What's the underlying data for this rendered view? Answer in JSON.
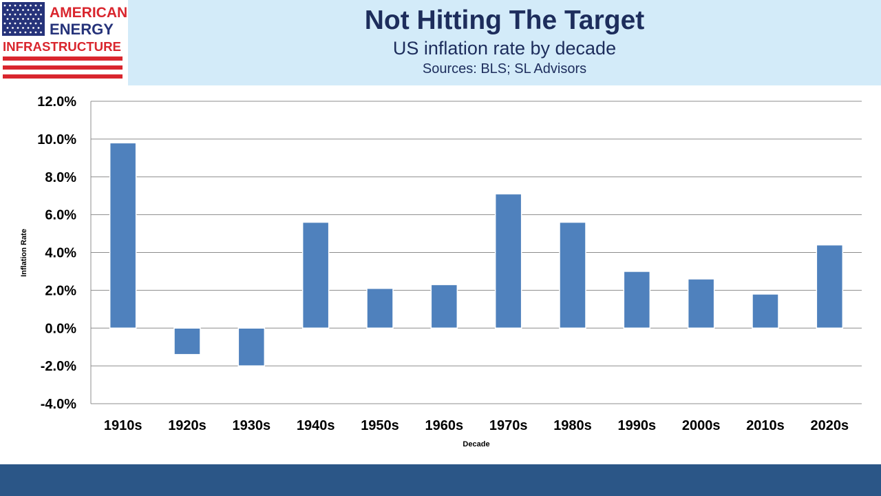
{
  "logo": {
    "line1": "AMERICAN",
    "line2": "ENERGY",
    "line3": "INFRASTRUCTURE",
    "colors": {
      "navy": "#26337a",
      "red": "#d9262e"
    }
  },
  "header": {
    "title": "Not Hitting The Target",
    "subtitle": "US inflation rate by decade",
    "source": "Sources: BLS; SL Advisors"
  },
  "chart_data": {
    "type": "bar",
    "categories": [
      "1910s",
      "1920s",
      "1930s",
      "1940s",
      "1950s",
      "1960s",
      "1970s",
      "1980s",
      "1990s",
      "2000s",
      "2010s",
      "2020s"
    ],
    "values": [
      9.8,
      -1.4,
      -2.0,
      5.6,
      2.1,
      2.3,
      7.1,
      5.6,
      3.0,
      2.6,
      1.8,
      4.4
    ],
    "xlabel": "Decade",
    "ylabel": "Inflation Rate",
    "ylim": [
      -4,
      12
    ],
    "yticks": [
      -4,
      -2,
      0,
      2,
      4,
      6,
      8,
      10,
      12
    ],
    "ytick_labels": [
      "-4.0%",
      "-2.0%",
      "0.0%",
      "2.0%",
      "4.0%",
      "6.0%",
      "8.0%",
      "10.0%",
      "12.0%"
    ],
    "grid": true,
    "bar_color": "#4f81bd",
    "grid_color": "#8c8c8c"
  }
}
